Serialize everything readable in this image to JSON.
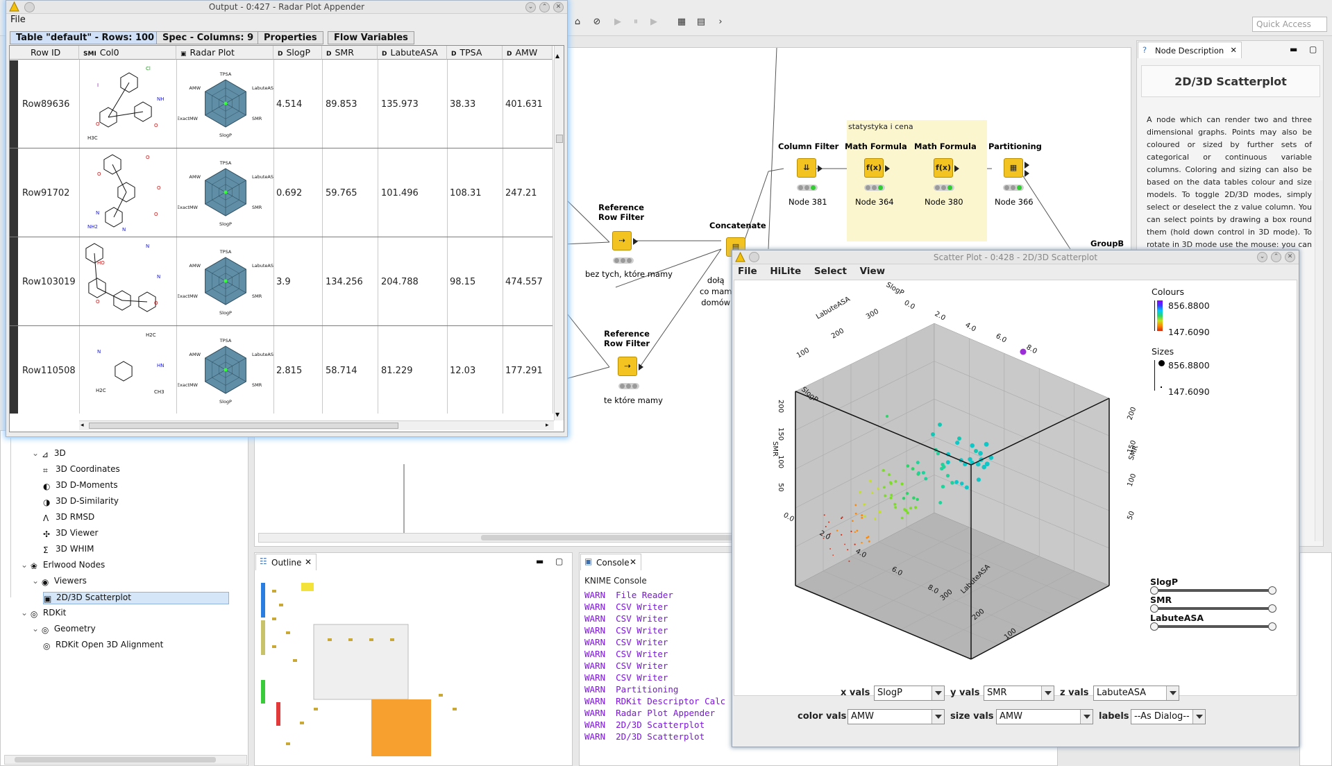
{
  "toolbar": {
    "quick_access_placeholder": "Quick Access"
  },
  "output_window": {
    "title": "Output - 0:427 - Radar Plot Appender",
    "menu_file": "File",
    "tabs": [
      "Table \"default\" - Rows: 100",
      "Spec - Columns: 9",
      "Properties",
      "Flow Variables"
    ],
    "columns": [
      {
        "type": "",
        "label": "Row ID"
      },
      {
        "type": "SMI",
        "label": "Col0"
      },
      {
        "type": "",
        "label": "Radar Plot"
      },
      {
        "type": "D",
        "label": "SlogP"
      },
      {
        "type": "D",
        "label": "SMR"
      },
      {
        "type": "D",
        "label": "LabuteASA"
      },
      {
        "type": "D",
        "label": "TPSA"
      },
      {
        "type": "D",
        "label": "AMW"
      }
    ],
    "rows": [
      {
        "id": "Row89636",
        "slogp": "4.514",
        "smr": "89.853",
        "labute": "135.973",
        "tpsa": "38.33",
        "amw": "401.631"
      },
      {
        "id": "Row91702",
        "slogp": "0.692",
        "smr": "59.765",
        "labute": "101.496",
        "tpsa": "108.31",
        "amw": "247.21"
      },
      {
        "id": "Row103019",
        "slogp": "3.9",
        "smr": "134.256",
        "labute": "204.788",
        "tpsa": "98.15",
        "amw": "474.557"
      },
      {
        "id": "Row110508",
        "slogp": "2.815",
        "smr": "58.714",
        "labute": "81.229",
        "tpsa": "12.03",
        "amw": "177.291"
      }
    ],
    "radar_labels": {
      "top": "TPSA",
      "tr": "LabuteASA",
      "br": "SMR",
      "bottom": "SlogP",
      "bl": "ExactMW",
      "tl": "AMW"
    },
    "molecule_atoms": [
      [
        "Cl",
        "NH",
        "O",
        "I",
        "O",
        "H3C"
      ],
      [
        "O",
        "O",
        "O",
        "O",
        "N",
        "NH2",
        "N"
      ],
      [
        "N",
        "N",
        "O",
        "HO",
        "O"
      ],
      [
        "H2C",
        "HN",
        "CH3",
        "N",
        "H2C"
      ]
    ]
  },
  "workflow": {
    "annotation": "statystyka i cena",
    "nodes": [
      {
        "title": "Reference\nRow Filter",
        "sub": "bez tych, które mamy",
        "glyph": "⇢"
      },
      {
        "title": "Reference\nRow Filter",
        "sub": "te które mamy",
        "glyph": "⇢"
      },
      {
        "title": "Concatenate",
        "sub": "dołą\nco mam\ndomów",
        "glyph": "▤"
      },
      {
        "title": "Column Filter",
        "sub": "Node 381",
        "glyph": "⇊"
      },
      {
        "title": "Math Formula",
        "sub": "Node 364",
        "glyph": "f(x)"
      },
      {
        "title": "Math Formula",
        "sub": "Node 380",
        "glyph": "f(x)"
      },
      {
        "title": "Partitioning",
        "sub": "Node 366",
        "glyph": "▦"
      },
      {
        "title": "GroupB",
        "sub": "",
        "glyph": ""
      }
    ]
  },
  "description": {
    "tab": "Node Description",
    "title": "2D/3D Scatterplot",
    "text": "A node which can render two and three dimensional graphs. Points may also be coloured or sized by further sets of categorical or continuous variable columns. Coloring and sizing can also be based on the data tables colour and size models. To toggle 2D/3D modes, simply select or deselect the z value column. You can select points by drawing a box round them (hold down control in 3D mode). To rotate in 3D mode use the mouse: you can zoom the viewpoint with the mouse"
  },
  "repository": {
    "items": [
      {
        "label": "3D",
        "indent": 3
      },
      {
        "label": "3D Coordinates",
        "indent": 4
      },
      {
        "label": "3D D-Moments",
        "indent": 4
      },
      {
        "label": "3D D-Similarity",
        "indent": 4
      },
      {
        "label": "3D RMSD",
        "indent": 4
      },
      {
        "label": "3D Viewer",
        "indent": 4
      },
      {
        "label": "3D WHIM",
        "indent": 4
      },
      {
        "label": "Erlwood Nodes",
        "indent": 2
      },
      {
        "label": "Viewers",
        "indent": 3
      },
      {
        "label": "2D/3D Scatterplot",
        "indent": 4
      },
      {
        "label": "RDKit",
        "indent": 2
      },
      {
        "label": "Geometry",
        "indent": 3
      },
      {
        "label": "RDKit Open 3D Alignment",
        "indent": 4
      }
    ]
  },
  "outline": {
    "tab": "Outline"
  },
  "console": {
    "tab": "Console",
    "header": "KNIME Console",
    "lines": [
      "WARN  File Reader",
      "WARN  CSV Writer",
      "WARN  CSV Writer",
      "WARN  CSV Writer",
      "WARN  CSV Writer",
      "WARN  CSV Writer",
      "WARN  CSV Writer",
      "WARN  CSV Writer",
      "WARN  Partitioning",
      "WARN  RDKit Descriptor Calc",
      "WARN  Radar Plot Appender",
      "WARN  2D/3D Scatterplot",
      "WARN  2D/3D Scatterplot"
    ]
  },
  "scatter_window": {
    "title": "Scatter Plot - 0:428 - 2D/3D Scatterplot",
    "menu": [
      "File",
      "HiLite",
      "Select",
      "View"
    ],
    "colours_title": "Colours",
    "colours_max": "856.8800",
    "colours_min": "147.6090",
    "sizes_title": "Sizes",
    "sizes_max": "856.8800",
    "sizes_min": "147.6090",
    "axis_sliders": [
      "SlogP",
      "SMR",
      "LabuteASA"
    ],
    "controls": {
      "x_label": "x vals",
      "x_value": "SlogP",
      "y_label": "y vals",
      "y_value": "SMR",
      "z_label": "z vals",
      "z_value": "LabuteASA",
      "color_label": "color vals",
      "color_value": "AMW",
      "size_label": "size vals",
      "size_value": "AMW",
      "labels_label": "labels",
      "labels_value": "--As Dialog--"
    },
    "axis_ticks": {
      "slogp": [
        "0.0",
        "2.0",
        "4.0",
        "6.0",
        "8.0"
      ],
      "labute": [
        "100",
        "200",
        "300"
      ],
      "smr": [
        "50",
        "100",
        "150",
        "200"
      ]
    },
    "axis_names": {
      "slogp": "SlogP",
      "labute": "LabuteASA",
      "smr": "SMR"
    }
  }
}
